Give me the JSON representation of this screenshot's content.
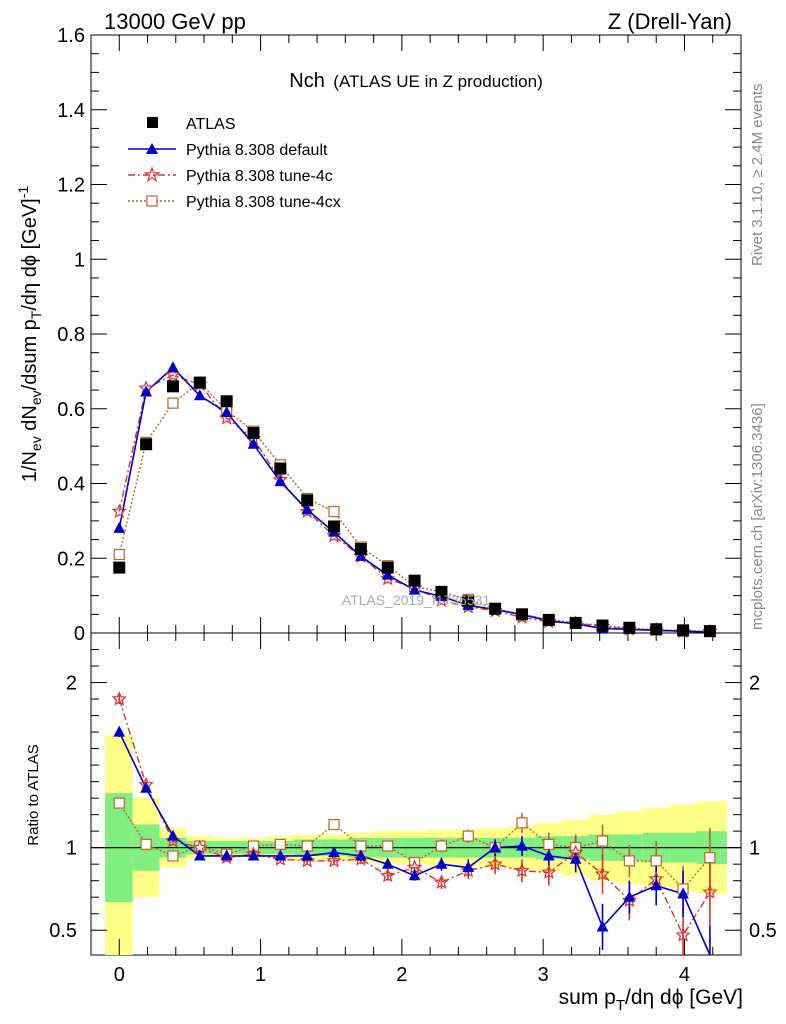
{
  "header": {
    "left": "13000 GeV pp",
    "right": "Z (Drell-Yan)"
  },
  "title": {
    "main": "Nch",
    "sub": "(ATLAS UE in Z production)"
  },
  "side_labels": {
    "rivet": "Rivet 3.1.10, ≥ 2.4M events",
    "mcplots": "mcplots.cern.ch [arXiv:1306.3436]"
  },
  "watermark": "ATLAS_2019_I1736531",
  "axes": {
    "top_ylabel": "1/N_ev dN_ev/dsum p_T/dη dϕ [GeV]^-1",
    "bottom_ylabel": "Ratio to ATLAS",
    "xlabel": "sum p_T/dη dϕ [GeV]"
  },
  "legend": [
    {
      "key": "data",
      "label": "ATLAS"
    },
    {
      "key": "def",
      "label": "Pythia 8.308 default"
    },
    {
      "key": "t4c",
      "label": "Pythia 8.308 tune-4c"
    },
    {
      "key": "t4cx",
      "label": "Pythia 8.308 tune-4cx"
    }
  ],
  "colors": {
    "data": "#000000",
    "default": "#0000cc",
    "tune4c": "#e03030",
    "tune4cx": "#c0602a",
    "band_inner": "#80ee80",
    "band_outer": "#ffff88"
  },
  "chart_data": {
    "type": "line",
    "top": {
      "xlim": [
        -0.2,
        4.4
      ],
      "ylim": [
        0,
        1.6
      ],
      "yticks": [
        0,
        0.2,
        0.4,
        0.6,
        0.8,
        1,
        1.2,
        1.4,
        1.6
      ],
      "ytick_labels": [
        "0",
        "0.2",
        "0.4",
        "0.6",
        "0.8",
        "1",
        "1.2",
        "1.4",
        "1.6"
      ],
      "x": [
        0,
        0.19,
        0.38,
        0.57,
        0.76,
        0.95,
        1.14,
        1.33,
        1.52,
        1.71,
        1.9,
        2.09,
        2.28,
        2.47,
        2.66,
        2.85,
        3.04,
        3.23,
        3.42,
        3.61,
        3.8,
        3.99,
        4.18
      ],
      "series": [
        {
          "name": "ATLAS",
          "values": [
            0.175,
            0.505,
            0.66,
            0.67,
            0.62,
            0.535,
            0.44,
            0.355,
            0.285,
            0.225,
            0.175,
            0.14,
            0.11,
            0.085,
            0.065,
            0.05,
            0.035,
            0.027,
            0.02,
            0.014,
            0.01,
            0.007,
            0.005
          ]
        },
        {
          "name": "Pythia 8.308 default",
          "values": [
            0.28,
            0.645,
            0.71,
            0.635,
            0.59,
            0.505,
            0.405,
            0.33,
            0.27,
            0.205,
            0.155,
            0.115,
            0.098,
            0.074,
            0.063,
            0.049,
            0.033,
            0.024,
            0.012,
            0.01,
            0.007,
            0.005,
            0.002
          ]
        },
        {
          "name": "Pythia 8.308 tune-4c",
          "values": [
            0.325,
            0.655,
            0.69,
            0.665,
            0.575,
            0.52,
            0.41,
            0.325,
            0.26,
            0.205,
            0.145,
            0.12,
            0.087,
            0.07,
            0.059,
            0.042,
            0.03,
            0.026,
            0.017,
            0.01,
            0.008,
            0.004,
            0.004
          ]
        },
        {
          "name": "Pythia 8.308 tune-4cx",
          "values": [
            0.21,
            0.51,
            0.615,
            0.67,
            0.595,
            0.54,
            0.45,
            0.36,
            0.325,
            0.23,
            0.18,
            0.125,
            0.11,
            0.09,
            0.065,
            0.05,
            0.036,
            0.027,
            0.02,
            0.013,
            0.009,
            0.006,
            0.005
          ]
        }
      ]
    },
    "ratio": {
      "ylim": [
        0.35,
        2.3
      ],
      "yticks": [
        0.5,
        1,
        2
      ],
      "ytick_labels": [
        "0.5",
        "1",
        "2"
      ],
      "xticks": [
        0,
        1,
        2,
        3,
        4
      ],
      "xtick_labels": [
        "0",
        "1",
        "2",
        "3",
        "4"
      ],
      "band_edges": [
        -0.1,
        0.095,
        0.285,
        0.475,
        0.665,
        0.855,
        1.045,
        1.235,
        1.425,
        1.615,
        1.805,
        1.995,
        2.185,
        2.375,
        2.565,
        2.755,
        2.945,
        3.135,
        3.325,
        3.515,
        3.705,
        3.895,
        4.085,
        4.3
      ],
      "band_inner": [
        0.33,
        0.14,
        0.06,
        0.04,
        0.04,
        0.04,
        0.04,
        0.05,
        0.05,
        0.06,
        0.06,
        0.06,
        0.06,
        0.06,
        0.06,
        0.06,
        0.07,
        0.07,
        0.08,
        0.08,
        0.09,
        0.09,
        0.1
      ],
      "band_outer": [
        0.68,
        0.3,
        0.12,
        0.07,
        0.06,
        0.06,
        0.07,
        0.08,
        0.08,
        0.09,
        0.1,
        0.1,
        0.11,
        0.11,
        0.12,
        0.13,
        0.15,
        0.17,
        0.2,
        0.22,
        0.24,
        0.26,
        0.28
      ],
      "series": [
        {
          "name": "Pythia 8.308 default",
          "values": [
            1.7,
            1.36,
            1.07,
            0.95,
            0.95,
            0.95,
            0.95,
            0.95,
            0.97,
            0.95,
            0.9,
            0.83,
            0.9,
            0.88,
            1.0,
            1.01,
            0.95,
            0.93,
            0.52,
            0.7,
            0.77,
            0.72,
            0.33
          ],
          "errors": [
            0.03,
            0.02,
            0.02,
            0.01,
            0.01,
            0.02,
            0.02,
            0.02,
            0.02,
            0.03,
            0.03,
            0.03,
            0.04,
            0.05,
            0.05,
            0.06,
            0.07,
            0.08,
            0.14,
            0.1,
            0.12,
            0.14,
            0.2
          ]
        },
        {
          "name": "Pythia 8.308 tune-4c",
          "values": [
            1.9,
            1.38,
            1.04,
            1.0,
            0.94,
            0.96,
            0.93,
            0.92,
            0.92,
            0.93,
            0.83,
            0.88,
            0.79,
            0.86,
            0.9,
            0.86,
            0.85,
            0.97,
            0.84,
            0.68,
            0.81,
            0.47,
            0.73
          ],
          "errors": [
            0.03,
            0.02,
            0.01,
            0.01,
            0.01,
            0.02,
            0.02,
            0.02,
            0.02,
            0.03,
            0.03,
            0.04,
            0.04,
            0.05,
            0.06,
            0.07,
            0.08,
            0.1,
            0.12,
            0.12,
            0.14,
            0.16,
            0.2
          ]
        },
        {
          "name": "Pythia 8.308 tune-4cx",
          "values": [
            1.27,
            1.02,
            0.95,
            1.01,
            0.96,
            1.01,
            1.02,
            1.01,
            1.14,
            1.01,
            1.01,
            0.91,
            1.01,
            1.07,
            1.0,
            1.15,
            1.02,
            1.0,
            1.04,
            0.92,
            0.92,
            0.75,
            0.94
          ],
          "errors": [
            0.02,
            0.01,
            0.01,
            0.01,
            0.01,
            0.01,
            0.02,
            0.02,
            0.02,
            0.02,
            0.03,
            0.03,
            0.04,
            0.04,
            0.05,
            0.06,
            0.07,
            0.08,
            0.1,
            0.1,
            0.12,
            0.14,
            0.18
          ]
        }
      ]
    }
  }
}
